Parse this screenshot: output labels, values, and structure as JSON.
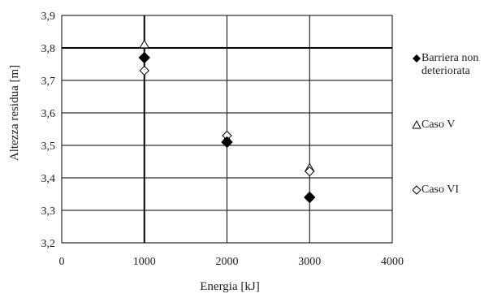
{
  "chart_data": {
    "type": "scatter",
    "xlabel": "Energia [kJ]",
    "ylabel": "Altezza residua [m]",
    "xlim": [
      0,
      4000
    ],
    "ylim": [
      3.2,
      3.9
    ],
    "xticks": [
      0,
      1000,
      2000,
      3000,
      4000
    ],
    "yticks": [
      3.2,
      3.3,
      3.4,
      3.5,
      3.6,
      3.7,
      3.8,
      3.9
    ],
    "ytick_labels": [
      "3,2",
      "3,3",
      "3,4",
      "3,5",
      "3,6",
      "3,7",
      "3,8",
      "3,9"
    ],
    "grid": true,
    "legend_position": "right",
    "series": [
      {
        "name": "Barriera non\ndeteriorata",
        "marker": "diamond-filled",
        "color": "#000000",
        "x": [
          1000,
          2000,
          3000
        ],
        "y": [
          3.77,
          3.51,
          3.34
        ]
      },
      {
        "name": "Caso V",
        "marker": "triangle-open",
        "color": "#000000",
        "x": [
          1000,
          2000,
          3000
        ],
        "y": [
          3.81,
          3.52,
          3.43
        ]
      },
      {
        "name": "Caso VI",
        "marker": "diamond-open",
        "color": "#000000",
        "x": [
          1000,
          2000,
          3000
        ],
        "y": [
          3.73,
          3.53,
          3.42
        ]
      }
    ]
  }
}
